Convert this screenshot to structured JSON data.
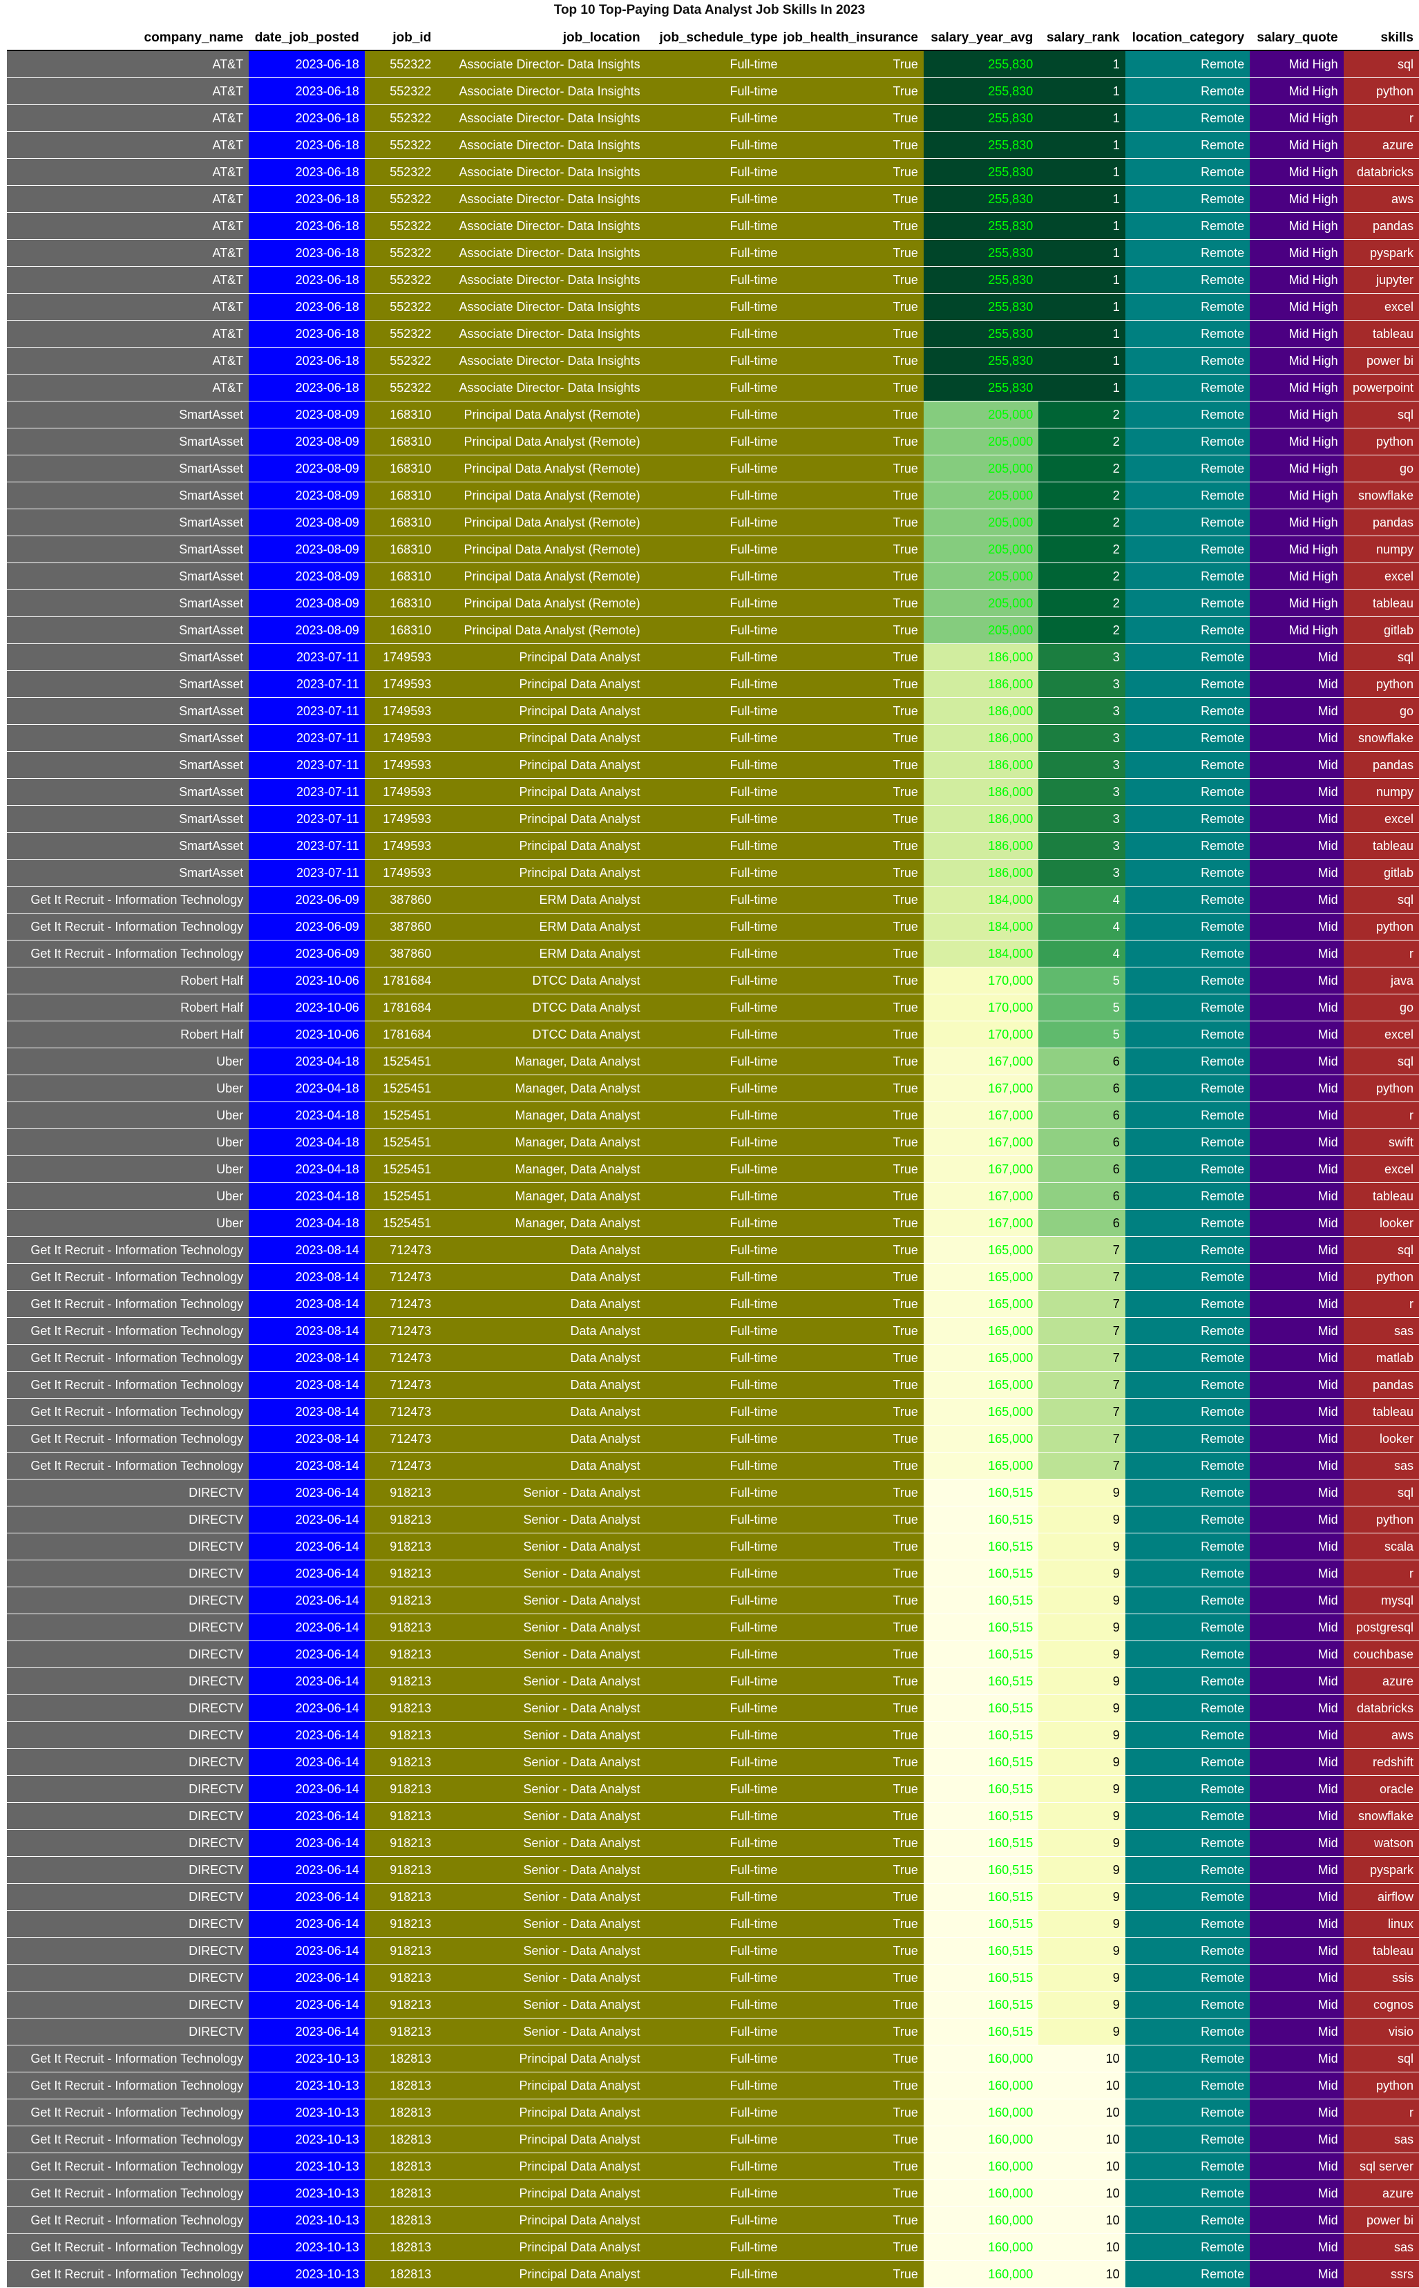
{
  "title": "Top 10 Top-Paying Data Analyst Job Skills In 2023",
  "colors": {
    "company_bg": "#666666",
    "date_bg": "#0000ff",
    "olive_bg": "#808000",
    "location_bg": "#008080",
    "quote_bg": "#4b0082",
    "skills_bg": "#a52a2a",
    "salary_text": "#00ff00",
    "gradient_low": "#ffffe5",
    "gradient_mid": "#78c679",
    "gradient_high": "#004529"
  },
  "chart_data": {
    "type": "table",
    "title": "Top 10 Top-Paying Data Analyst Job Skills In 2023",
    "columns": [
      "company_name",
      "date_job_posted",
      "job_id",
      "job_location",
      "job_schedule_type",
      "job_health_insurance",
      "salary_year_avg",
      "salary_rank",
      "location_category",
      "salary_quote",
      "skills"
    ],
    "jobs": [
      {
        "company_name": "AT&T",
        "date_job_posted": "2023-06-18",
        "job_id": "552322",
        "job_location": "Associate Director- Data Insights",
        "job_schedule_type": "Full-time",
        "job_health_insurance": "True",
        "salary_year_avg": 255830,
        "salary_display": "255,830",
        "salary_rank": 1,
        "location_category": "Remote",
        "salary_quote": "Mid High",
        "skills": [
          "sql",
          "python",
          "r",
          "azure",
          "databricks",
          "aws",
          "pandas",
          "pyspark",
          "jupyter",
          "excel",
          "tableau",
          "power bi",
          "powerpoint"
        ]
      },
      {
        "company_name": "SmartAsset",
        "date_job_posted": "2023-08-09",
        "job_id": "168310",
        "job_location": "Principal Data Analyst (Remote)",
        "job_schedule_type": "Full-time",
        "job_health_insurance": "True",
        "salary_year_avg": 205000,
        "salary_display": "205,000",
        "salary_rank": 2,
        "location_category": "Remote",
        "salary_quote": "Mid High",
        "skills": [
          "sql",
          "python",
          "go",
          "snowflake",
          "pandas",
          "numpy",
          "excel",
          "tableau",
          "gitlab"
        ]
      },
      {
        "company_name": "SmartAsset",
        "date_job_posted": "2023-07-11",
        "job_id": "1749593",
        "job_location": "Principal Data Analyst",
        "job_schedule_type": "Full-time",
        "job_health_insurance": "True",
        "salary_year_avg": 186000,
        "salary_display": "186,000",
        "salary_rank": 3,
        "location_category": "Remote",
        "salary_quote": "Mid",
        "skills": [
          "sql",
          "python",
          "go",
          "snowflake",
          "pandas",
          "numpy",
          "excel",
          "tableau",
          "gitlab"
        ]
      },
      {
        "company_name": "Get It Recruit - Information Technology",
        "date_job_posted": "2023-06-09",
        "job_id": "387860",
        "job_location": "ERM Data Analyst",
        "job_schedule_type": "Full-time",
        "job_health_insurance": "True",
        "salary_year_avg": 184000,
        "salary_display": "184,000",
        "salary_rank": 4,
        "location_category": "Remote",
        "salary_quote": "Mid",
        "skills": [
          "sql",
          "python",
          "r"
        ]
      },
      {
        "company_name": "Robert Half",
        "date_job_posted": "2023-10-06",
        "job_id": "1781684",
        "job_location": "DTCC Data Analyst",
        "job_schedule_type": "Full-time",
        "job_health_insurance": "True",
        "salary_year_avg": 170000,
        "salary_display": "170,000",
        "salary_rank": 5,
        "location_category": "Remote",
        "salary_quote": "Mid",
        "skills": [
          "java",
          "go",
          "excel"
        ]
      },
      {
        "company_name": "Uber",
        "date_job_posted": "2023-04-18",
        "job_id": "1525451",
        "job_location": "Manager, Data Analyst",
        "job_schedule_type": "Full-time",
        "job_health_insurance": "True",
        "salary_year_avg": 167000,
        "salary_display": "167,000",
        "salary_rank": 6,
        "location_category": "Remote",
        "salary_quote": "Mid",
        "skills": [
          "sql",
          "python",
          "r",
          "swift",
          "excel",
          "tableau",
          "looker"
        ]
      },
      {
        "company_name": "Get It Recruit - Information Technology",
        "date_job_posted": "2023-08-14",
        "job_id": "712473",
        "job_location": "Data Analyst",
        "job_schedule_type": "Full-time",
        "job_health_insurance": "True",
        "salary_year_avg": 165000,
        "salary_display": "165,000",
        "salary_rank": 7,
        "location_category": "Remote",
        "salary_quote": "Mid",
        "skills": [
          "sql",
          "python",
          "r",
          "sas",
          "matlab",
          "pandas",
          "tableau",
          "looker",
          "sas"
        ]
      },
      {
        "company_name": "DIRECTV",
        "date_job_posted": "2023-06-14",
        "job_id": "918213",
        "job_location": "Senior - Data Analyst",
        "job_schedule_type": "Full-time",
        "job_health_insurance": "True",
        "salary_year_avg": 160515,
        "salary_display": "160,515",
        "salary_rank": 9,
        "location_category": "Remote",
        "salary_quote": "Mid",
        "skills": [
          "sql",
          "python",
          "scala",
          "r",
          "mysql",
          "postgresql",
          "couchbase",
          "azure",
          "databricks",
          "aws",
          "redshift",
          "oracle",
          "snowflake",
          "watson",
          "pyspark",
          "airflow",
          "linux",
          "tableau",
          "ssis",
          "cognos",
          "visio"
        ]
      },
      {
        "company_name": "Get It Recruit - Information Technology",
        "date_job_posted": "2023-10-13",
        "job_id": "182813",
        "job_location": "Principal Data Analyst",
        "job_schedule_type": "Full-time",
        "job_health_insurance": "True",
        "salary_year_avg": 160000,
        "salary_display": "160,000",
        "salary_rank": 10,
        "location_category": "Remote",
        "salary_quote": "Mid",
        "skills": [
          "sql",
          "python",
          "r",
          "sas",
          "sql server",
          "azure",
          "power bi",
          "sas",
          "ssrs"
        ]
      }
    ]
  }
}
